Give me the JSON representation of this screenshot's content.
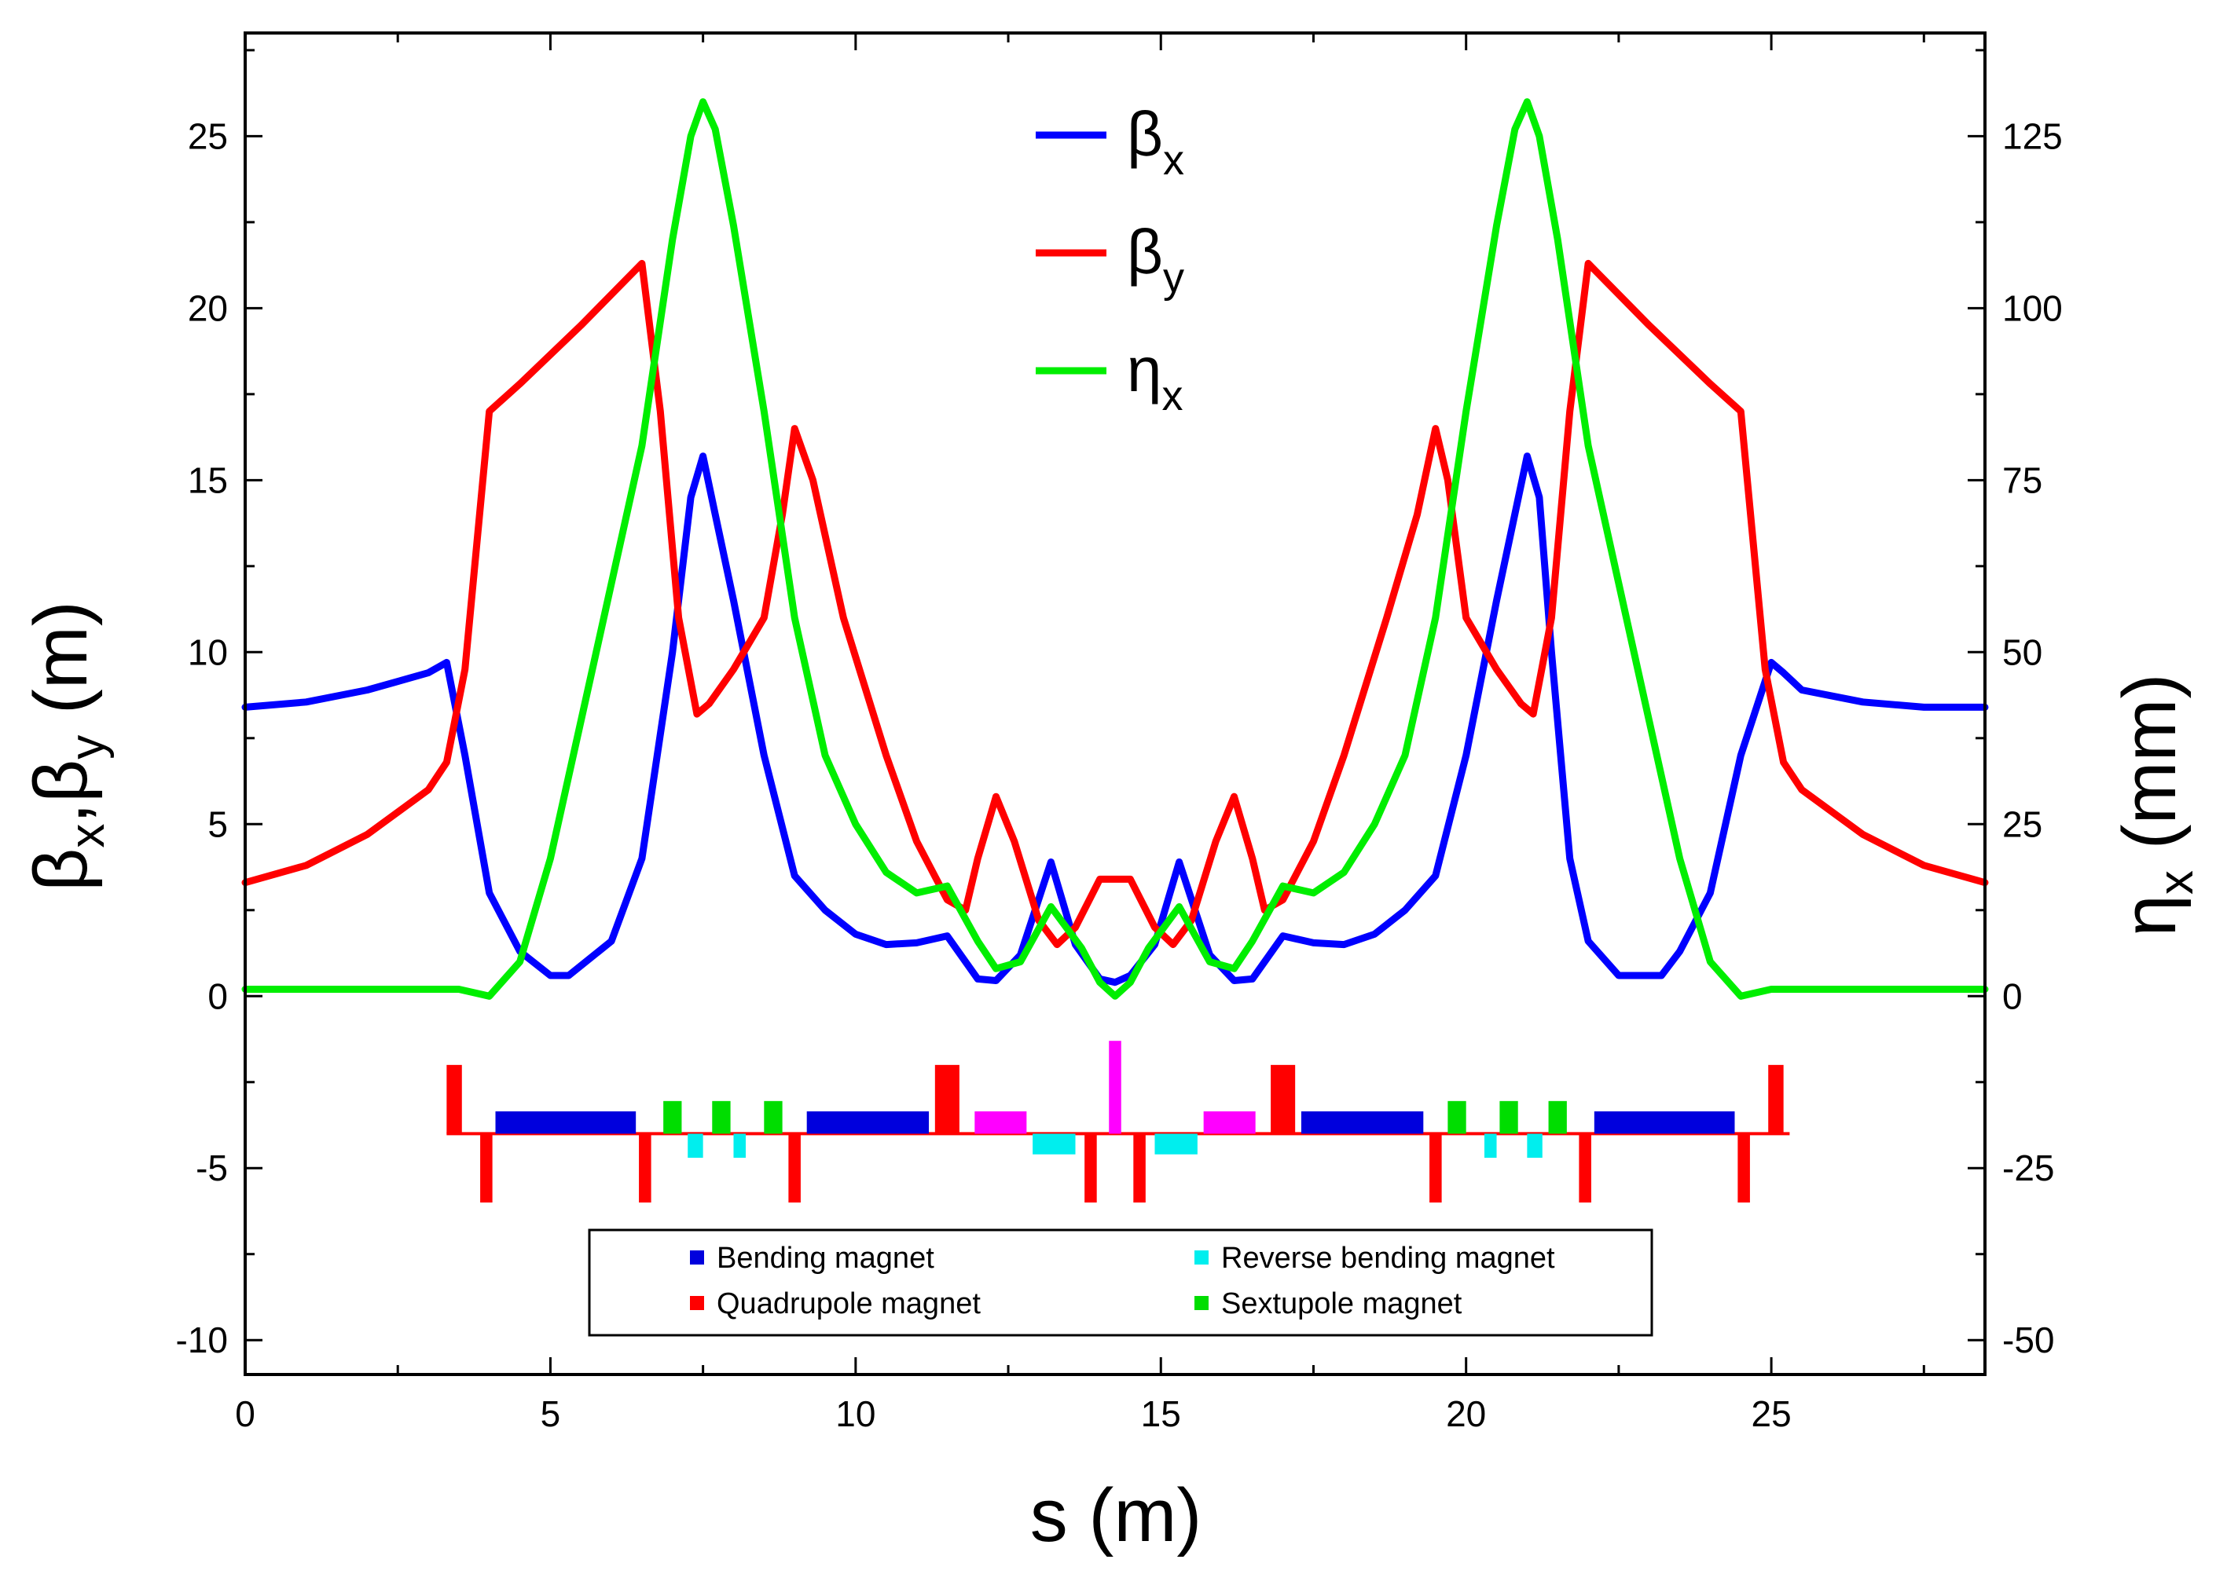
{
  "chart_data": {
    "type": "line",
    "xlabel": "s (m)",
    "ylabel_left": {
      "parts": [
        "β",
        "x",
        ",β",
        "y",
        " (m)"
      ]
    },
    "ylabel_right": {
      "parts": [
        "η",
        "x",
        " (mm)"
      ]
    },
    "xlim": [
      0,
      28.5
    ],
    "ylim_left": [
      -11,
      28
    ],
    "ylim_right": [
      -55,
      140
    ],
    "x_ticks": [
      0,
      5,
      10,
      15,
      20,
      25
    ],
    "x_tick_labels": [
      "0",
      "5",
      "10",
      "15",
      "20",
      "25"
    ],
    "y_left_ticks": [
      -10,
      -5,
      0,
      5,
      10,
      15,
      20,
      25
    ],
    "y_left_tick_labels": [
      "-10",
      "-5",
      "0",
      "5",
      "10",
      "15",
      "20",
      "25"
    ],
    "y_right_ticks": [
      -50,
      -25,
      0,
      25,
      50,
      75,
      100,
      125
    ],
    "y_right_tick_labels": [
      "-50",
      "-25",
      "0",
      "25",
      "50",
      "75",
      "100",
      "125"
    ],
    "series": [
      {
        "name": "beta_x",
        "label": {
          "main": "β",
          "sub": "x"
        },
        "color": "#0000ff",
        "axis": "left",
        "x": [
          0,
          1,
          2,
          3,
          3.3,
          3.6,
          4,
          4.5,
          5,
          5.3,
          6,
          6.5,
          7,
          7.3,
          7.5,
          7.7,
          8,
          8.5,
          9,
          9.5,
          10,
          10.5,
          11,
          11.5,
          12,
          12.3,
          12.7,
          13.2,
          13.6,
          14,
          14.25,
          14.5,
          14.9,
          15.3,
          15.8,
          16.2,
          16.5,
          17,
          17.5,
          18,
          18.5,
          19,
          19.5,
          20,
          20.5,
          21,
          21.2,
          21.4,
          21.7,
          22,
          22.5,
          23.2,
          23.5,
          24,
          24.5,
          25,
          25.2,
          25.5,
          26.5,
          27.5,
          28.5
        ],
        "y": [
          8.4,
          8.55,
          8.9,
          9.4,
          9.7,
          7.0,
          3.0,
          1.3,
          0.6,
          0.6,
          1.6,
          4.0,
          10.0,
          14.5,
          15.7,
          14.0,
          11.5,
          7.0,
          3.5,
          2.5,
          1.8,
          1.5,
          1.55,
          1.75,
          0.5,
          0.45,
          1.2,
          3.9,
          1.5,
          0.5,
          0.4,
          0.6,
          1.5,
          3.9,
          1.2,
          0.45,
          0.5,
          1.75,
          1.55,
          1.5,
          1.8,
          2.5,
          3.5,
          7.0,
          11.5,
          15.7,
          14.5,
          10.0,
          4.0,
          1.6,
          0.6,
          0.6,
          1.3,
          3.0,
          7.0,
          9.7,
          9.4,
          8.9,
          8.55,
          8.4,
          8.4
        ]
      },
      {
        "name": "beta_y",
        "label": {
          "main": "β",
          "sub": "y"
        },
        "color": "#ff0000",
        "axis": "left",
        "x": [
          0,
          1,
          2,
          3,
          3.3,
          3.6,
          4,
          4.5,
          5.5,
          6.5,
          6.8,
          7.1,
          7.4,
          7.6,
          8,
          8.5,
          8.8,
          9,
          9.3,
          9.8,
          10.5,
          11,
          11.5,
          11.8,
          12,
          12.3,
          12.6,
          13,
          13.3,
          13.6,
          14,
          14.25,
          14.5,
          14.9,
          15.2,
          15.5,
          15.9,
          16.2,
          16.5,
          16.7,
          17,
          17.5,
          18,
          18.7,
          19.2,
          19.5,
          19.7,
          20,
          20.5,
          20.9,
          21.1,
          21.4,
          21.7,
          22,
          23,
          24,
          24.5,
          24.9,
          25.2,
          25.5,
          26.5,
          27.5,
          28.5
        ],
        "y": [
          3.3,
          3.8,
          4.7,
          6.0,
          6.8,
          9.5,
          17.0,
          17.8,
          19.5,
          21.3,
          17.0,
          11.0,
          8.2,
          8.5,
          9.5,
          11.0,
          14.0,
          16.5,
          15.0,
          11.0,
          7.0,
          4.5,
          2.8,
          2.5,
          4.0,
          5.8,
          4.5,
          2.2,
          1.5,
          2.0,
          3.4,
          3.4,
          3.4,
          2.0,
          1.5,
          2.2,
          4.5,
          5.8,
          4.0,
          2.5,
          2.8,
          4.5,
          7.0,
          11.0,
          14.0,
          16.5,
          15.0,
          11.0,
          9.5,
          8.5,
          8.2,
          11.0,
          17.0,
          21.3,
          19.5,
          17.8,
          17.0,
          9.5,
          6.8,
          6.0,
          4.7,
          3.8,
          3.3
        ]
      },
      {
        "name": "eta_x",
        "label": {
          "main": "η",
          "sub": "x"
        },
        "color": "#00ee00",
        "axis": "right",
        "x": [
          0,
          1,
          2,
          3,
          3.5,
          4,
          4.5,
          5,
          5.5,
          6,
          6.5,
          7,
          7.3,
          7.5,
          7.7,
          8,
          8.5,
          9,
          9.5,
          10,
          10.5,
          11,
          11.5,
          12,
          12.3,
          12.7,
          13.2,
          13.7,
          14,
          14.25,
          14.5,
          14.8,
          15.3,
          15.8,
          16.2,
          16.5,
          17,
          17.5,
          18,
          18.5,
          19,
          19.5,
          20,
          20.5,
          20.8,
          21,
          21.2,
          21.5,
          22,
          22.5,
          23,
          23.5,
          24,
          24.5,
          25,
          25.5,
          26.5,
          27.5,
          28.5
        ],
        "y": [
          1,
          1,
          1,
          1,
          1,
          0,
          5,
          20,
          40,
          60,
          80,
          110,
          125,
          130,
          126,
          112,
          85,
          55,
          35,
          25,
          18,
          15,
          16,
          8,
          4,
          5,
          13,
          7,
          2,
          0,
          2,
          7,
          13,
          5,
          4,
          8,
          16,
          15,
          18,
          25,
          35,
          55,
          85,
          112,
          126,
          130,
          125,
          110,
          80,
          60,
          40,
          20,
          5,
          0,
          1,
          1,
          1,
          1,
          1
        ]
      }
    ],
    "lattice": {
      "baseline": -4.0,
      "x_range": [
        3.3,
        25.3
      ],
      "baseline_color": "#ff0000",
      "elements": [
        {
          "kind": "quadrupole",
          "color": "#ff0000",
          "s0": 3.3,
          "s1": 3.55,
          "y0": -4.0,
          "y1": -2.0
        },
        {
          "kind": "quadrupole",
          "color": "#ff0000",
          "s0": 3.85,
          "s1": 4.05,
          "y0": -6.0,
          "y1": -4.0
        },
        {
          "kind": "bending",
          "color": "#0000dd",
          "s0": 4.1,
          "s1": 6.4,
          "y0": -4.0,
          "y1": -3.35
        },
        {
          "kind": "quadrupole",
          "color": "#ff0000",
          "s0": 6.45,
          "s1": 6.65,
          "y0": -6.0,
          "y1": -4.0
        },
        {
          "kind": "sextupole",
          "color": "#00dd00",
          "s0": 6.85,
          "s1": 7.15,
          "y0": -4.0,
          "y1": -3.05
        },
        {
          "kind": "reverse",
          "color": "#00eeee",
          "s0": 7.25,
          "s1": 7.5,
          "y0": -4.7,
          "y1": -4.0
        },
        {
          "kind": "sextupole",
          "color": "#00dd00",
          "s0": 7.65,
          "s1": 7.95,
          "y0": -4.0,
          "y1": -3.05
        },
        {
          "kind": "reverse",
          "color": "#00eeee",
          "s0": 8.0,
          "s1": 8.2,
          "y0": -4.7,
          "y1": -4.0
        },
        {
          "kind": "sextupole",
          "color": "#00dd00",
          "s0": 8.5,
          "s1": 8.8,
          "y0": -4.0,
          "y1": -3.05
        },
        {
          "kind": "quadrupole",
          "color": "#ff0000",
          "s0": 8.9,
          "s1": 9.1,
          "y0": -6.0,
          "y1": -4.0
        },
        {
          "kind": "bending",
          "color": "#0000dd",
          "s0": 9.2,
          "s1": 11.2,
          "y0": -4.0,
          "y1": -3.35
        },
        {
          "kind": "quadrupole",
          "color": "#ff0000",
          "s0": 11.3,
          "s1": 11.7,
          "y0": -4.0,
          "y1": -2.0
        },
        {
          "kind": "special",
          "color": "#ff00ff",
          "s0": 11.95,
          "s1": 12.8,
          "y0": -4.0,
          "y1": -3.35
        },
        {
          "kind": "reverse",
          "color": "#00eeee",
          "s0": 12.9,
          "s1": 13.6,
          "y0": -4.6,
          "y1": -4.0
        },
        {
          "kind": "quadrupole",
          "color": "#ff0000",
          "s0": 13.75,
          "s1": 13.95,
          "y0": -6.0,
          "y1": -4.0
        },
        {
          "kind": "special",
          "color": "#ff00ff",
          "s0": 14.15,
          "s1": 14.35,
          "y0": -4.0,
          "y1": -1.3
        },
        {
          "kind": "quadrupole",
          "color": "#ff0000",
          "s0": 14.55,
          "s1": 14.75,
          "y0": -6.0,
          "y1": -4.0
        },
        {
          "kind": "reverse",
          "color": "#00eeee",
          "s0": 14.9,
          "s1": 15.6,
          "y0": -4.6,
          "y1": -4.0
        },
        {
          "kind": "special",
          "color": "#ff00ff",
          "s0": 15.7,
          "s1": 16.55,
          "y0": -4.0,
          "y1": -3.35
        },
        {
          "kind": "quadrupole",
          "color": "#ff0000",
          "s0": 16.8,
          "s1": 17.2,
          "y0": -4.0,
          "y1": -2.0
        },
        {
          "kind": "bending",
          "color": "#0000dd",
          "s0": 17.3,
          "s1": 19.3,
          "y0": -4.0,
          "y1": -3.35
        },
        {
          "kind": "quadrupole",
          "color": "#ff0000",
          "s0": 19.4,
          "s1": 19.6,
          "y0": -6.0,
          "y1": -4.0
        },
        {
          "kind": "sextupole",
          "color": "#00dd00",
          "s0": 19.7,
          "s1": 20.0,
          "y0": -4.0,
          "y1": -3.05
        },
        {
          "kind": "reverse",
          "color": "#00eeee",
          "s0": 20.3,
          "s1": 20.5,
          "y0": -4.7,
          "y1": -4.0
        },
        {
          "kind": "sextupole",
          "color": "#00dd00",
          "s0": 20.55,
          "s1": 20.85,
          "y0": -4.0,
          "y1": -3.05
        },
        {
          "kind": "reverse",
          "color": "#00eeee",
          "s0": 21.0,
          "s1": 21.25,
          "y0": -4.7,
          "y1": -4.0
        },
        {
          "kind": "sextupole",
          "color": "#00dd00",
          "s0": 21.35,
          "s1": 21.65,
          "y0": -4.0,
          "y1": -3.05
        },
        {
          "kind": "quadrupole",
          "color": "#ff0000",
          "s0": 21.85,
          "s1": 22.05,
          "y0": -6.0,
          "y1": -4.0
        },
        {
          "kind": "bending",
          "color": "#0000dd",
          "s0": 22.1,
          "s1": 24.4,
          "y0": -4.0,
          "y1": -3.35
        },
        {
          "kind": "quadrupole",
          "color": "#ff0000",
          "s0": 24.45,
          "s1": 24.65,
          "y0": -6.0,
          "y1": -4.0
        },
        {
          "kind": "quadrupole",
          "color": "#ff0000",
          "s0": 24.95,
          "s1": 25.2,
          "y0": -4.0,
          "y1": -2.0
        }
      ]
    },
    "element_legend": {
      "placement": "bottom-center",
      "entries": [
        {
          "label": "Bending magnet",
          "color": "#0000dd"
        },
        {
          "label": "Reverse bending magnet",
          "color": "#00eeee"
        },
        {
          "label": "Quadrupole magnet",
          "color": "#ff0000"
        },
        {
          "label": "Sextupole magnet",
          "color": "#00dd00"
        }
      ]
    },
    "line_legend_placement": "top-center"
  }
}
